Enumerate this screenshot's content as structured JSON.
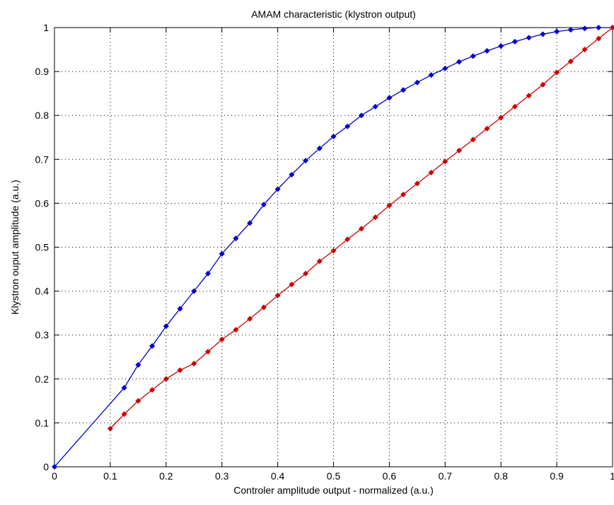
{
  "chart_data": {
    "type": "line",
    "title": "AMAM characteristic (klystron output)",
    "xlabel": "Controler amplitude output - normalized (a.u.)",
    "ylabel": "Klystron ouput amplitude (a.u.)",
    "xlim": [
      0,
      1
    ],
    "ylim": [
      0,
      1
    ],
    "xticks": [
      "0",
      "0.1",
      "0.2",
      "0.3",
      "0.4",
      "0.5",
      "0.6",
      "0.7",
      "0.8",
      "0.9",
      "1"
    ],
    "yticks": [
      "0",
      "0.1",
      "0.2",
      "0.3",
      "0.4",
      "0.5",
      "0.6",
      "0.7",
      "0.8",
      "0.9",
      "1"
    ],
    "grid": true,
    "series": [
      {
        "color": "#0000cc",
        "marker": "diamond",
        "points": [
          [
            0,
            0
          ],
          [
            0.125,
            0.18
          ],
          [
            0.15,
            0.232
          ],
          [
            0.175,
            0.275
          ],
          [
            0.2,
            0.32
          ],
          [
            0.225,
            0.36
          ],
          [
            0.25,
            0.4
          ],
          [
            0.275,
            0.44
          ],
          [
            0.3,
            0.485
          ],
          [
            0.325,
            0.52
          ],
          [
            0.35,
            0.555
          ],
          [
            0.375,
            0.597
          ],
          [
            0.4,
            0.632
          ],
          [
            0.425,
            0.665
          ],
          [
            0.45,
            0.697
          ],
          [
            0.475,
            0.725
          ],
          [
            0.5,
            0.752
          ],
          [
            0.525,
            0.775
          ],
          [
            0.55,
            0.8
          ],
          [
            0.575,
            0.82
          ],
          [
            0.6,
            0.84
          ],
          [
            0.625,
            0.858
          ],
          [
            0.65,
            0.875
          ],
          [
            0.675,
            0.892
          ],
          [
            0.7,
            0.907
          ],
          [
            0.725,
            0.922
          ],
          [
            0.75,
            0.935
          ],
          [
            0.775,
            0.947
          ],
          [
            0.8,
            0.958
          ],
          [
            0.825,
            0.968
          ],
          [
            0.85,
            0.977
          ],
          [
            0.875,
            0.985
          ],
          [
            0.9,
            0.991
          ],
          [
            0.925,
            0.995
          ],
          [
            0.95,
            0.998
          ],
          [
            0.975,
            1.0
          ],
          [
            1.0,
            1.0
          ]
        ]
      },
      {
        "color": "#cc0000",
        "marker": "diamond",
        "points": [
          [
            0.1,
            0.087
          ],
          [
            0.125,
            0.12
          ],
          [
            0.15,
            0.15
          ],
          [
            0.175,
            0.175
          ],
          [
            0.2,
            0.2
          ],
          [
            0.225,
            0.22
          ],
          [
            0.25,
            0.235
          ],
          [
            0.275,
            0.262
          ],
          [
            0.3,
            0.29
          ],
          [
            0.325,
            0.312
          ],
          [
            0.35,
            0.337
          ],
          [
            0.375,
            0.363
          ],
          [
            0.4,
            0.39
          ],
          [
            0.425,
            0.415
          ],
          [
            0.45,
            0.44
          ],
          [
            0.475,
            0.468
          ],
          [
            0.5,
            0.492
          ],
          [
            0.525,
            0.518
          ],
          [
            0.55,
            0.542
          ],
          [
            0.575,
            0.568
          ],
          [
            0.6,
            0.595
          ],
          [
            0.625,
            0.62
          ],
          [
            0.65,
            0.645
          ],
          [
            0.675,
            0.67
          ],
          [
            0.7,
            0.695
          ],
          [
            0.725,
            0.72
          ],
          [
            0.75,
            0.745
          ],
          [
            0.775,
            0.77
          ],
          [
            0.8,
            0.795
          ],
          [
            0.825,
            0.82
          ],
          [
            0.85,
            0.845
          ],
          [
            0.875,
            0.87
          ],
          [
            0.9,
            0.898
          ],
          [
            0.925,
            0.923
          ],
          [
            0.95,
            0.95
          ],
          [
            0.975,
            0.975
          ],
          [
            1.0,
            1.0
          ]
        ]
      }
    ]
  }
}
